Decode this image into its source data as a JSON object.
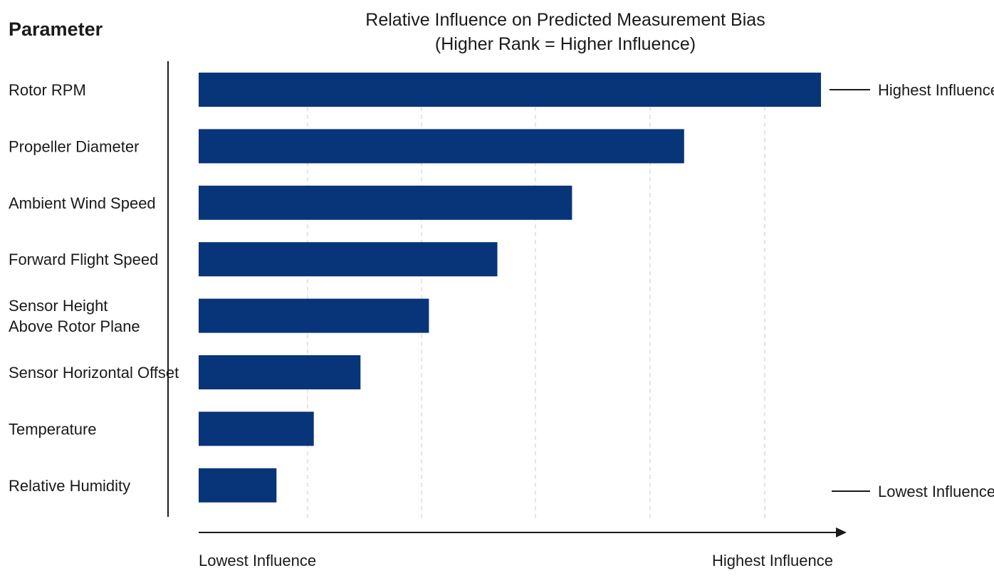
{
  "chart_data": {
    "type": "bar",
    "orientation": "horizontal",
    "title": "Relative Influence on Predicted Measurement Bias",
    "subtitle": "(Higher Rank = Higher Influence)",
    "category_heading": "Parameter",
    "categories": [
      "Rotor RPM",
      "Propeller Diameter",
      "Ambient Wind Speed",
      "Forward Flight Speed",
      "Sensor Height\nAbove Rotor Plane",
      "Sensor Horizontal Offset",
      "Temperature",
      "Relative Humidity"
    ],
    "values": [
      100,
      78,
      60,
      48,
      37,
      26,
      18.5,
      12.5
    ],
    "xlim": [
      0,
      104
    ],
    "x_axis_min_label": "Lowest Influence",
    "x_axis_max_label": "Highest Influence",
    "top_annotation": "Highest Influence",
    "bottom_annotation": "Lowest Influence",
    "grid": true,
    "bar_color": "#083479"
  }
}
